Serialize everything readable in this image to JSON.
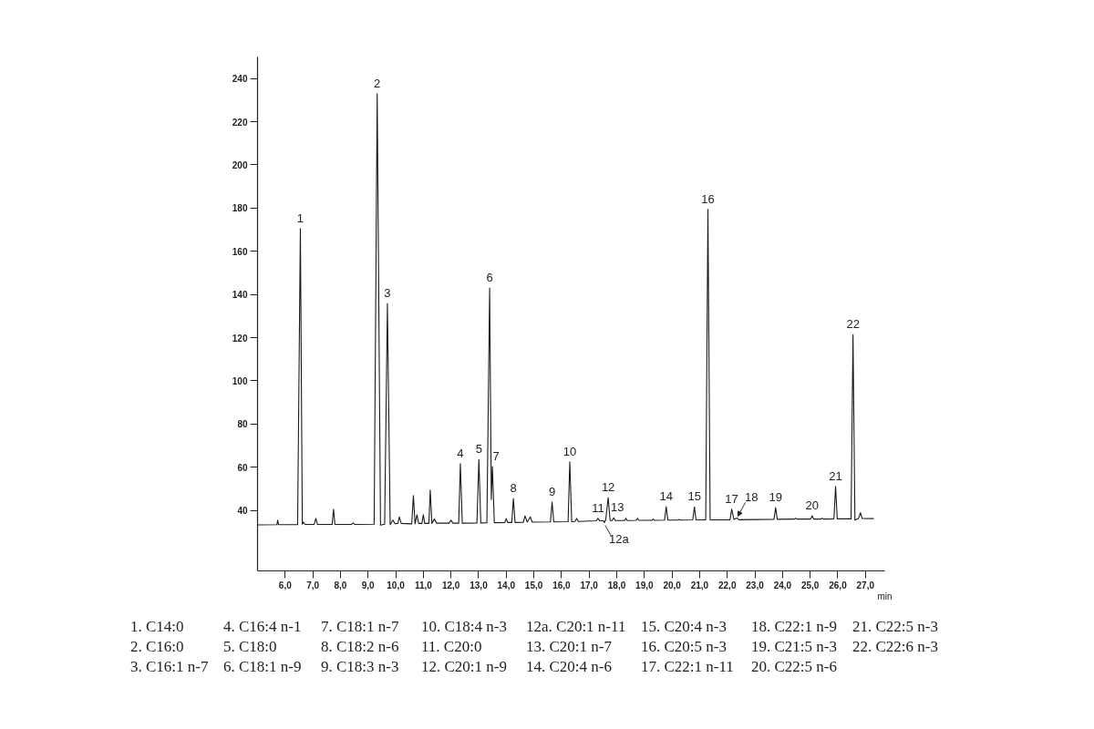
{
  "chart_data": {
    "type": "line",
    "xlabel": "min",
    "xlim": [
      5.0,
      27.7
    ],
    "ylim": [
      12,
      250
    ],
    "xticks": [
      {
        "value": 6,
        "label": "6,0"
      },
      {
        "value": 7,
        "label": "7,0"
      },
      {
        "value": 8,
        "label": "8,0"
      },
      {
        "value": 9,
        "label": "9,0"
      },
      {
        "value": 10,
        "label": "10,0"
      },
      {
        "value": 11,
        "label": "11,0"
      },
      {
        "value": 12,
        "label": "12,0"
      },
      {
        "value": 13,
        "label": "13,0"
      },
      {
        "value": 14,
        "label": "14,0"
      },
      {
        "value": 15,
        "label": "15,0"
      },
      {
        "value": 16,
        "label": "16,0"
      },
      {
        "value": 17,
        "label": "17,0"
      },
      {
        "value": 18,
        "label": "18,0"
      },
      {
        "value": 19,
        "label": "19,0"
      },
      {
        "value": 20,
        "label": "20,0"
      },
      {
        "value": 21,
        "label": "21,0"
      },
      {
        "value": 22,
        "label": "22,0"
      },
      {
        "value": 23,
        "label": "23,0"
      },
      {
        "value": 24,
        "label": "24,0"
      },
      {
        "value": 25,
        "label": "25,0"
      },
      {
        "value": 26,
        "label": "26,0"
      },
      {
        "value": 27,
        "label": "27,0"
      }
    ],
    "yticks": [
      40,
      60,
      80,
      100,
      120,
      140,
      160,
      180,
      200,
      220,
      240
    ],
    "x": [
      5.0,
      5.7,
      5.73,
      5.76,
      6.45,
      6.55,
      6.62,
      6.66,
      6.72,
      7.05,
      7.11,
      7.17,
      7.7,
      7.75,
      7.8,
      8.4,
      8.46,
      8.52,
      9.22,
      9.33,
      9.45,
      9.6,
      9.7,
      9.8,
      9.9,
      9.97,
      10.08,
      10.13,
      10.2,
      10.58,
      10.64,
      10.7,
      10.77,
      10.83,
      10.95,
      11.0,
      11.05,
      11.2,
      11.25,
      11.31,
      11.4,
      11.48,
      11.93,
      12.0,
      12.07,
      12.28,
      12.34,
      12.41,
      12.94,
      13.01,
      13.08,
      13.3,
      13.4,
      13.46,
      13.5,
      13.57,
      13.95,
      14.0,
      14.05,
      14.2,
      14.26,
      14.32,
      14.62,
      14.68,
      14.76,
      14.87,
      14.94,
      15.6,
      15.66,
      15.72,
      16.24,
      16.3,
      16.37,
      16.49,
      16.55,
      16.61,
      17.26,
      17.32,
      17.38,
      17.52,
      17.55,
      17.6,
      17.69,
      17.76,
      17.83,
      17.89,
      17.95,
      18.28,
      18.33,
      18.38,
      18.7,
      18.75,
      18.8,
      19.27,
      19.32,
      19.37,
      19.73,
      19.79,
      19.85,
      20.21,
      20.26,
      20.31,
      20.75,
      20.81,
      20.87,
      21.22,
      21.3,
      21.38,
      22.1,
      22.16,
      22.24,
      22.35,
      22.42,
      23.69,
      23.75,
      23.81,
      24.43,
      24.48,
      24.53,
      25.01,
      25.07,
      25.13,
      25.38,
      25.43,
      25.48,
      25.86,
      25.92,
      25.98,
      26.48,
      26.55,
      26.62,
      26.75,
      26.82,
      26.88,
      27.29
    ],
    "series": [
      {
        "color": "#1a1a1a",
        "values": [
          33.3,
          33.4,
          35.5,
          33.4,
          33.4,
          170.5,
          33.6,
          34.6,
          33.5,
          33.5,
          36.3,
          33.5,
          33.5,
          40.6,
          33.5,
          33.5,
          34.2,
          33.5,
          33.6,
          233,
          33.2,
          33.6,
          135.8,
          33.4,
          35.5,
          33.9,
          34.0,
          37.0,
          34.0,
          33.8,
          46.9,
          33.8,
          38.0,
          34.0,
          34.0,
          38.0,
          34.0,
          34.0,
          49.4,
          34.0,
          36.0,
          34.1,
          34.1,
          35.5,
          34.1,
          34.1,
          61.7,
          34.1,
          34.2,
          63.6,
          34.2,
          34.3,
          143,
          45,
          60.3,
          34.3,
          34.4,
          36.2,
          34.4,
          34.4,
          45.5,
          34.4,
          34.5,
          37.5,
          34.6,
          37.0,
          34.6,
          34.7,
          43.8,
          34.7,
          34.8,
          62.5,
          34.8,
          34.9,
          36.3,
          34.9,
          35.2,
          36.3,
          35.2,
          35.2,
          34.4,
          35.5,
          45.9,
          35.3,
          35.3,
          36.6,
          35.3,
          35.3,
          36.3,
          35.3,
          35.4,
          36.3,
          35.4,
          35.4,
          36.0,
          35.4,
          35.5,
          41.7,
          35.5,
          35.5,
          35.8,
          35.5,
          35.6,
          41.6,
          35.6,
          35.6,
          179.4,
          35.6,
          35.7,
          40.6,
          35.8,
          36.5,
          35.7,
          35.9,
          41.3,
          35.9,
          36.0,
          36.4,
          36.0,
          36.0,
          37.5,
          36.0,
          36.0,
          36.4,
          36.0,
          36.1,
          51.1,
          36.1,
          36.1,
          121.4,
          35.5,
          36.3,
          38.9,
          36.3,
          36.2
        ]
      }
    ],
    "annotations": [
      {
        "text": "1",
        "x": 6.55,
        "y": 170.5
      },
      {
        "text": "2",
        "x": 9.33,
        "y": 233
      },
      {
        "text": "3",
        "x": 9.7,
        "y": 135.8
      },
      {
        "text": "4",
        "x": 12.34,
        "y": 61.7
      },
      {
        "text": "5",
        "x": 13.01,
        "y": 63.6
      },
      {
        "text": "6",
        "x": 13.4,
        "y": 143
      },
      {
        "text": "7",
        "x": 13.5,
        "y": 60.3
      },
      {
        "text": "8",
        "x": 14.26,
        "y": 45.5
      },
      {
        "text": "9",
        "x": 15.66,
        "y": 43.8
      },
      {
        "text": "10",
        "x": 16.3,
        "y": 62.5
      },
      {
        "text": "11",
        "x": 17.32,
        "y": 36.3
      },
      {
        "text": "12",
        "x": 17.69,
        "y": 45.9
      },
      {
        "text": "12a",
        "x": 17.55,
        "y": 34.4
      },
      {
        "text": "13",
        "x": 17.89,
        "y": 36.6
      },
      {
        "text": "14",
        "x": 19.79,
        "y": 41.7
      },
      {
        "text": "15",
        "x": 20.81,
        "y": 41.6
      },
      {
        "text": "16",
        "x": 21.3,
        "y": 179.4
      },
      {
        "text": "17",
        "x": 22.16,
        "y": 40.6
      },
      {
        "text": "18",
        "x": 22.35,
        "y": 36.5
      },
      {
        "text": "19",
        "x": 23.75,
        "y": 41.3
      },
      {
        "text": "20",
        "x": 25.07,
        "y": 37.5
      },
      {
        "text": "21",
        "x": 25.92,
        "y": 51.1
      },
      {
        "text": "22",
        "x": 26.55,
        "y": 121.4
      },
      "1. C14:0",
      "2. C16:0",
      "3. C16:1 n-7",
      "4. C16:4 n-1",
      "5. C18:0",
      "6. C18:1 n-9",
      "7. C18:1 n-7",
      "8. C18:2 n-6",
      "9. C18:3 n-3",
      "10. C18:4 n-3",
      "11. C20:0",
      "12. C20:1 n-9",
      "12a. C20:1 n-11",
      "13. C20:1 n-7",
      "14. C20:4 n-6",
      "15. C20:4 n-3",
      "16. C20:5 n-3",
      "17. C22:1 n-11",
      "18. C22:1 n-9",
      "19. C21:5 n-3",
      "20. C22:5 n-6",
      "21. C22:5 n-3",
      "22. C22:6 n-3"
    ]
  }
}
